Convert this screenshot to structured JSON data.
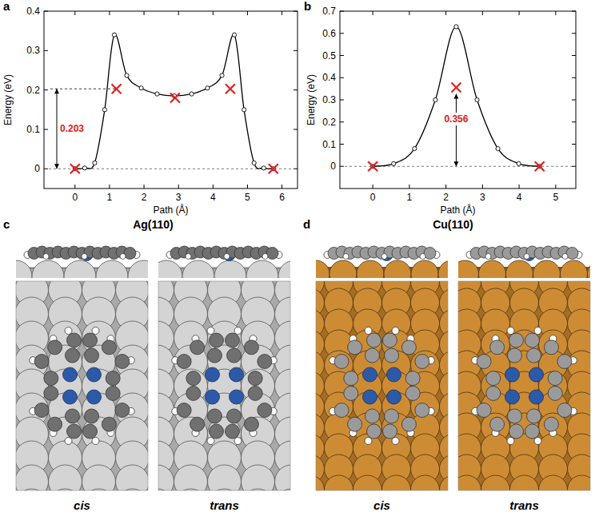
{
  "chart_data": [
    {
      "type": "line",
      "panel": "a",
      "x_label": "Path (Å)",
      "y_label": "Energy (eV)",
      "xlim": [
        -0.9,
        6.45
      ],
      "ylim": [
        -0.05,
        0.4
      ],
      "xticks": [
        0,
        1,
        2,
        3,
        4,
        5,
        6
      ],
      "yticks": [
        0,
        0.1,
        0.2,
        0.3,
        0.4
      ],
      "series": [
        {
          "type": "line",
          "color": "#000000",
          "marker": "circle",
          "line_style": "solid",
          "x": [
            0,
            0.28,
            0.57,
            0.86,
            1.14,
            1.5,
            1.92,
            2.38,
            2.88,
            3.38,
            3.84,
            4.26,
            4.62,
            4.9,
            5.19,
            5.47,
            5.75
          ],
          "values": [
            0,
            0.002,
            0.015,
            0.15,
            0.34,
            0.237,
            0.205,
            0.19,
            0.185,
            0.19,
            0.205,
            0.237,
            0.34,
            0.15,
            0.015,
            0.002,
            0
          ]
        },
        {
          "type": "scatter",
          "color": "#e02020",
          "marker": "x",
          "x": [
            0,
            1.2,
            2.9,
            4.5,
            5.75
          ],
          "values": [
            0,
            0.203,
            0.18,
            0.203,
            0
          ]
        }
      ],
      "annotations": [
        {
          "text": "0.203",
          "value": 0.203
        }
      ]
    },
    {
      "type": "line",
      "panel": "b",
      "x_label": "Path (Å)",
      "y_label": "Energy (eV)",
      "xlim": [
        -0.9,
        5.55
      ],
      "ylim": [
        -0.1,
        0.7
      ],
      "xticks": [
        0,
        1,
        2,
        3,
        4,
        5
      ],
      "yticks": [
        0,
        0.1,
        0.2,
        0.3,
        0.4,
        0.5,
        0.6,
        0.7
      ],
      "series": [
        {
          "type": "line",
          "color": "#000000",
          "marker": "circle",
          "line_style": "solid",
          "x": [
            0,
            0.57,
            1.14,
            1.71,
            2.28,
            2.85,
            3.42,
            3.99,
            4.56
          ],
          "values": [
            0,
            0.012,
            0.08,
            0.3,
            0.63,
            0.3,
            0.08,
            0.012,
            0
          ]
        },
        {
          "type": "scatter",
          "color": "#e02020",
          "marker": "x",
          "x": [
            0,
            2.28,
            4.56
          ],
          "values": [
            0,
            0.356,
            0
          ]
        }
      ],
      "annotations": [
        {
          "text": "0.356",
          "value": 0.356
        }
      ]
    }
  ],
  "diagrams": [
    {
      "panel": "c",
      "title": "Ag(110)",
      "views": [
        "cis",
        "trans"
      ]
    },
    {
      "panel": "d",
      "title": "Cu(110)",
      "views": [
        "cis",
        "trans"
      ]
    }
  ]
}
